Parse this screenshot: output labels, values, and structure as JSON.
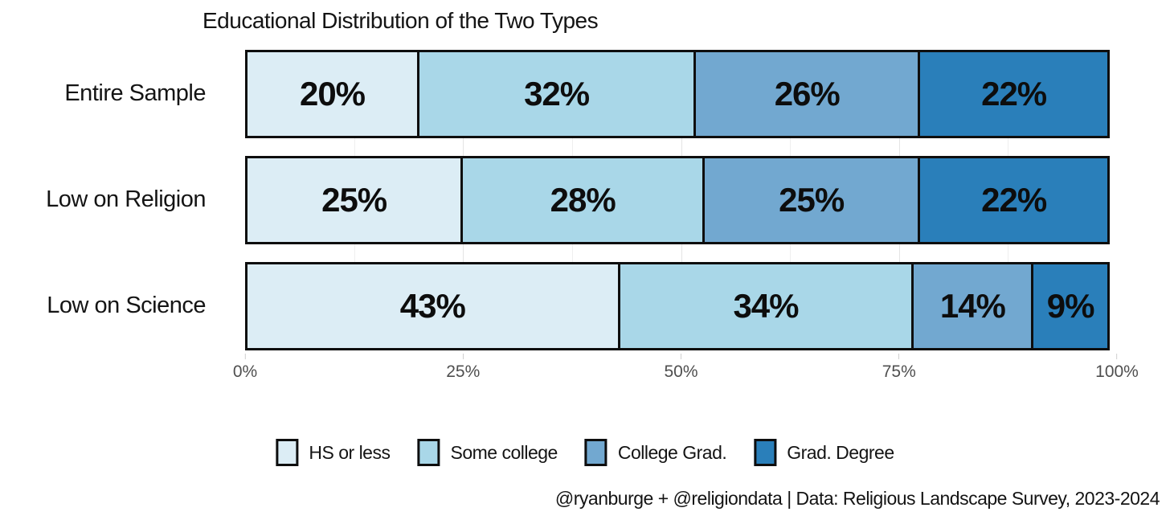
{
  "caption": "@ryanburge + @religiondata | Data: Religious Landscape Survey, 2023-2024",
  "colors": {
    "background": "#ffffff",
    "bar_border": "#0e0e0e",
    "axis_text": "#4f4f4f",
    "gridline_major": "#e4e4e4",
    "gridline_minor": "#efefef"
  },
  "chart_data": {
    "type": "bar",
    "orientation": "horizontal-stacked",
    "title": "Educational Distribution of the Two Types",
    "categories": [
      "Entire Sample",
      "Low on Religion",
      "Low on Science"
    ],
    "series": [
      {
        "name": "HS or less",
        "color": "#dcedf5",
        "values": [
          20,
          25,
          43
        ]
      },
      {
        "name": "Some college",
        "color": "#a9d7e8",
        "values": [
          32,
          28,
          34
        ]
      },
      {
        "name": "College Grad.",
        "color": "#72a8d0",
        "values": [
          26,
          25,
          14
        ]
      },
      {
        "name": "Grad. Degree",
        "color": "#2a7fba",
        "values": [
          22,
          22,
          9
        ]
      }
    ],
    "value_label_suffix": "%",
    "xlim": [
      0,
      100
    ],
    "x_ticks": [
      {
        "label": "0%",
        "value": 0
      },
      {
        "label": "25%",
        "value": 25
      },
      {
        "label": "50%",
        "value": 50
      },
      {
        "label": "75%",
        "value": 75
      },
      {
        "label": "100%",
        "value": 100
      }
    ],
    "grid": "faint-vertical",
    "legend_position": "bottom-center"
  }
}
